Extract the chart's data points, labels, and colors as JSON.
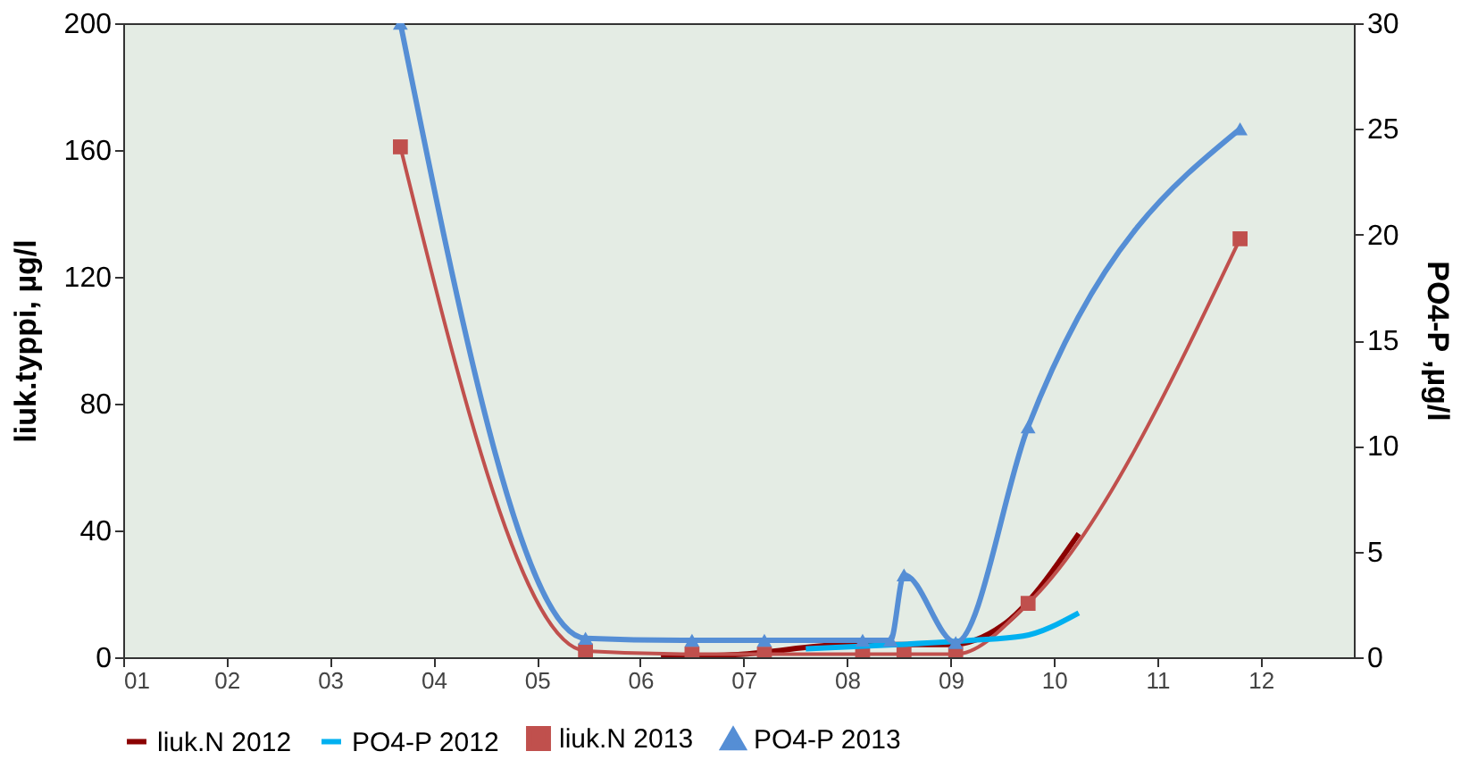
{
  "chart_data": {
    "type": "line",
    "ylabel": "liuk.typpi, µg/l",
    "y2label": "PO4-P ,µg/l",
    "xlim": [
      1,
      12.9
    ],
    "xticks": [
      {
        "value": 1,
        "label": "01"
      },
      {
        "value": 2,
        "label": "02"
      },
      {
        "value": 3,
        "label": "03"
      },
      {
        "value": 4,
        "label": "04"
      },
      {
        "value": 5,
        "label": "05"
      },
      {
        "value": 6,
        "label": "06"
      },
      {
        "value": 7,
        "label": "07"
      },
      {
        "value": 8,
        "label": "08"
      },
      {
        "value": 9,
        "label": "09"
      },
      {
        "value": 10,
        "label": "10"
      },
      {
        "value": 11,
        "label": "11"
      },
      {
        "value": 12,
        "label": "12"
      }
    ],
    "ylim": [
      0,
      200
    ],
    "yticks": [
      0,
      40,
      80,
      120,
      160,
      200
    ],
    "y2lim": [
      0,
      30
    ],
    "y2ticks": [
      0,
      5,
      10,
      15,
      20,
      25,
      30
    ],
    "grid": false,
    "legend": "bottom",
    "series": [
      {
        "name": "liuk.N 2012",
        "color": "#8b0000",
        "marker": "none",
        "x": [
          6.2,
          7,
          8,
          9,
          9.5,
          10.24
        ],
        "values": [
          0,
          1,
          4,
          4,
          10,
          39
        ]
      },
      {
        "name": "PO4-P 2012",
        "color": "#00b0f0",
        "marker": "none",
        "axis": "y2",
        "x": [
          7.6,
          8.5,
          9.2,
          9.7,
          10.24
        ],
        "values": [
          0.4,
          0.6,
          0.8,
          1.0,
          2.1
        ]
      },
      {
        "name": "liuk.N 2013",
        "color": "#c0504d",
        "marker": "square",
        "x": [
          3.68,
          5.47,
          6.5,
          7.2,
          8.15,
          8.55,
          9.05,
          9.75,
          11.8
        ],
        "values": [
          161,
          2,
          1,
          1,
          1,
          1,
          1,
          17,
          132
        ]
      },
      {
        "name": "PO4-P 2013",
        "color": "#558ed5",
        "marker": "triangle",
        "axis": "y2",
        "x": [
          3.68,
          5.47,
          6.5,
          7.2,
          8.15,
          8.42,
          8.55,
          9.05,
          9.75,
          11.8
        ],
        "values": [
          30,
          0.9,
          0.8,
          0.8,
          0.8,
          0.8,
          3.9,
          0.7,
          10.9,
          25
        ]
      }
    ]
  }
}
